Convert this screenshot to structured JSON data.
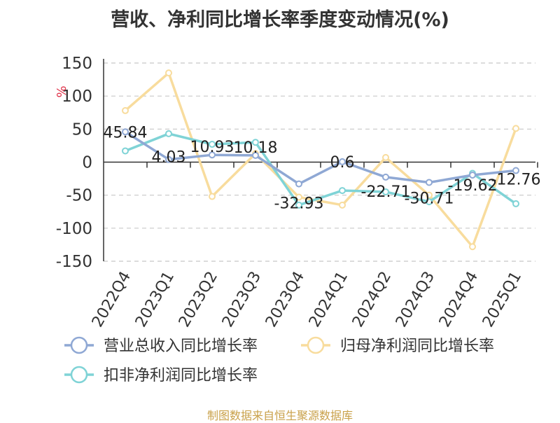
{
  "chart_data": {
    "type": "line",
    "title": "营收、净利同比增长率季度变动情况(%)",
    "ylabel": "%",
    "categories": [
      "2022Q4",
      "2023Q1",
      "2023Q2",
      "2023Q3",
      "2023Q4",
      "2024Q1",
      "2024Q2",
      "2024Q3",
      "2024Q4",
      "2025Q1"
    ],
    "ylim": [
      -150,
      150
    ],
    "yticks": [
      "150",
      "100",
      "50",
      "0",
      "-50",
      "-100",
      "-150"
    ],
    "grid": true,
    "legend_position": "bottom",
    "series": [
      {
        "name": "营业总收入同比增长率",
        "color": "#8fa8d4",
        "values": [
          45.84,
          4.03,
          10.93,
          10.18,
          -32.93,
          0.6,
          -22.71,
          -30.71,
          -19.62,
          -12.76
        ],
        "labels": [
          "45.84",
          "4.03",
          "10.93",
          "10.18",
          "-32.93",
          "0.6",
          "-22.71",
          "-30.71",
          "-19.62",
          "-12.76"
        ]
      },
      {
        "name": "归母净利润同比增长率",
        "color": "#f8dc9d",
        "values": [
          78,
          135,
          -52,
          13,
          -53,
          -65,
          7,
          -50,
          -128,
          51
        ]
      },
      {
        "name": "扣非净利润同比增长率",
        "color": "#7fd3d6",
        "values": [
          17,
          43,
          27,
          30,
          -65,
          -43,
          -45,
          -60,
          -17,
          -63
        ]
      }
    ]
  },
  "source_note": "制图数据来自恒生聚源数据库"
}
